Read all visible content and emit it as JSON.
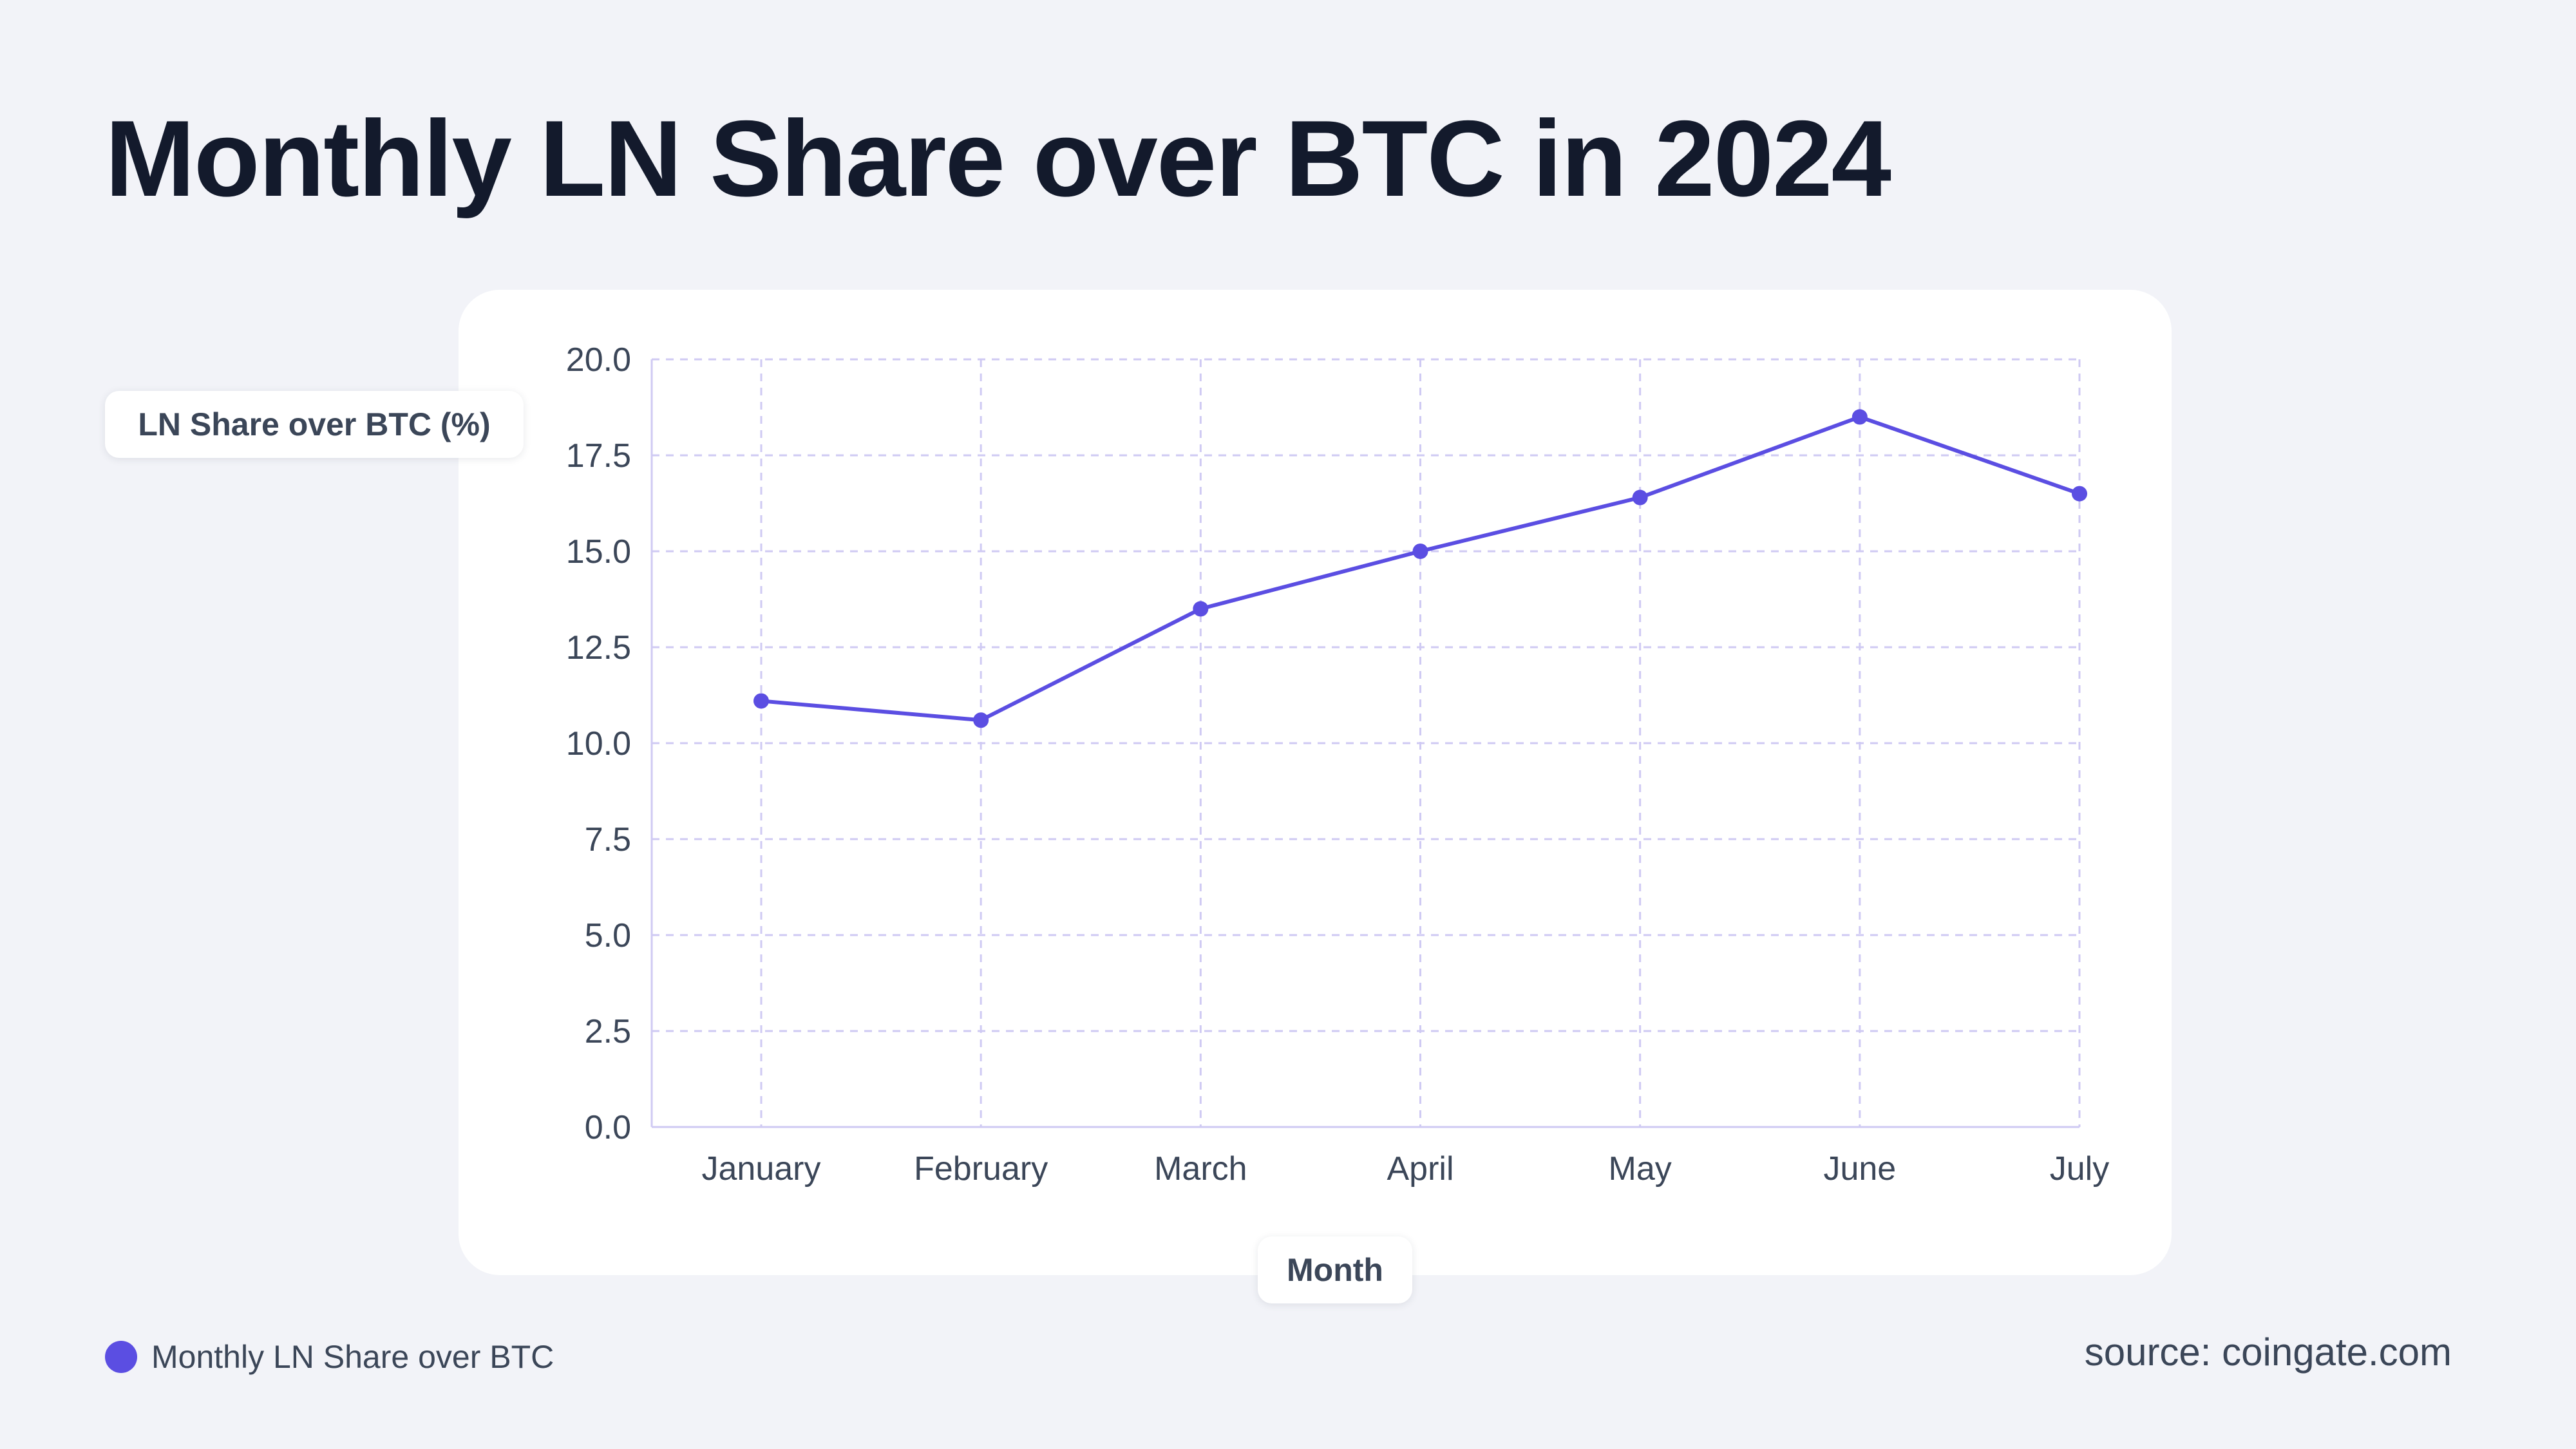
{
  "page": {
    "title": "Monthly LN Share over BTC in 2024",
    "source": "source: coingate.com"
  },
  "colors": {
    "background": "#f2f3f8",
    "line": "#5b4ee2",
    "grid": "#cfcaf3",
    "tick_text": "#3b4658",
    "title_text": "#131a2c"
  },
  "chart_data": {
    "type": "line",
    "title": "Monthly LN Share over BTC in 2024",
    "xlabel": "Month",
    "ylabel": "LN Share over BTC (%)",
    "categories": [
      "January",
      "February",
      "March",
      "April",
      "May",
      "June",
      "July"
    ],
    "series": [
      {
        "name": "Monthly LN Share over BTC",
        "values": [
          11.1,
          10.6,
          13.5,
          15.0,
          16.4,
          18.5,
          16.5
        ]
      }
    ],
    "ylim": [
      0,
      20
    ],
    "yticks": [
      "0.0",
      "2.5",
      "5.0",
      "7.5",
      "10.0",
      "12.5",
      "15.0",
      "17.5",
      "20.0"
    ],
    "grid": true,
    "legend_position": "bottom-left"
  }
}
